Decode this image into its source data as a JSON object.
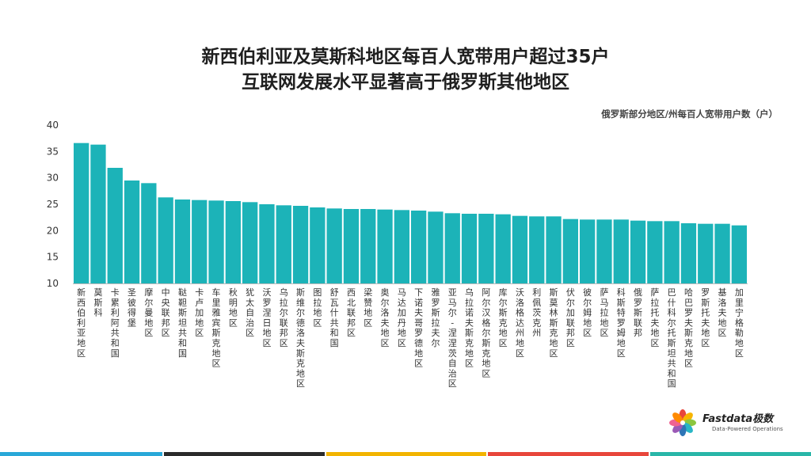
{
  "header": {
    "title_line1": "新西伯利亚及莫斯科地区每百人宽带用户超过35户",
    "title_line2": "互联网发展水平显著高于俄罗斯其他地区"
  },
  "brand": {
    "name": "Fastdata极数",
    "tagline": "Data-Powered Operations",
    "petal_colors": [
      "#e8463b",
      "#f7b500",
      "#8cc63f",
      "#29b6c6",
      "#2e75b6",
      "#9b59b6",
      "#f06292",
      "#ff8a00"
    ]
  },
  "bottom_stripe_colors": [
    "#29a8d8",
    "#2b2b2b",
    "#f2b400",
    "#e8463b",
    "#29b6a8"
  ],
  "chart_data": {
    "type": "bar",
    "title": "",
    "unit_label": "俄罗斯部分地区/州每百人宽带用户数（户）",
    "xlabel": "",
    "ylabel": "",
    "ylim": [
      10,
      40
    ],
    "yticks": [
      10,
      15,
      20,
      25,
      30,
      35,
      40
    ],
    "grid": false,
    "bar_color": "#1cb3b8",
    "categories": [
      "新西伯利亚地区",
      "莫斯科",
      "卡累利阿共和国",
      "圣彼得堡",
      "摩尔曼地区",
      "中央联邦区",
      "鞑靼斯坦共和国",
      "卡卢加地区",
      "车里雅宾斯克地区",
      "秋明地区",
      "犹太自治区",
      "沃罗涅日地区",
      "乌拉尔联邦区",
      "斯维尔德洛夫斯克地区",
      "图拉地区",
      "舒瓦什共和国",
      "西北联邦区",
      "梁赞地区",
      "奥尔洛夫地区",
      "马达加丹地区",
      "下诺夫哥罗德地区",
      "雅罗斯拉夫尔",
      "亚马尔-涅涅茨自治区",
      "乌拉诺夫斯克地区",
      "阿尔汉格尔斯克地区",
      "库尔斯克地区",
      "沃洛格达州地区",
      "利佩茨克州",
      "斯莫林斯克地区",
      "伏尔加联邦区",
      "彼尔姆地区",
      "萨马拉地区",
      "科斯特罗姆地区",
      "俄罗斯联邦",
      "萨拉托夫地区",
      "巴什科尔托斯坦共和国",
      "哈巴罗夫斯克地区",
      "罗斯托夫地区",
      "基洛夫地区",
      "加里宁格勒地区"
    ],
    "values": [
      36.6,
      36.3,
      31.9,
      29.5,
      29.0,
      26.3,
      25.9,
      25.8,
      25.7,
      25.6,
      25.4,
      25.0,
      24.8,
      24.7,
      24.4,
      24.2,
      24.1,
      24.1,
      24.0,
      23.9,
      23.8,
      23.6,
      23.3,
      23.2,
      23.2,
      23.1,
      22.8,
      22.7,
      22.7,
      22.2,
      22.1,
      22.1,
      22.1,
      21.9,
      21.8,
      21.8,
      21.4,
      21.3,
      21.3,
      21.0
    ]
  }
}
